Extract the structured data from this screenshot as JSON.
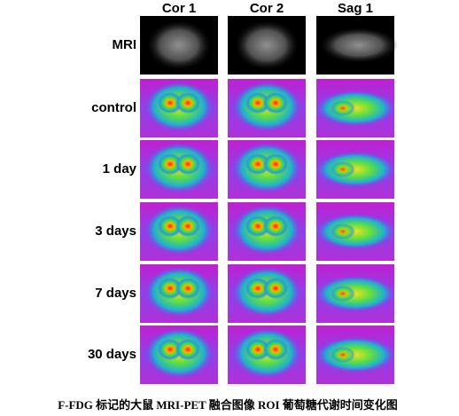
{
  "columns": [
    "Cor 1",
    "Cor 2",
    "Sag 1"
  ],
  "rows": [
    "MRI",
    "control",
    "1 day",
    "3 days",
    "7 days",
    "30 days"
  ],
  "caption": "F-FDG 标记的大鼠 MRI-PET 融合图像 ROI 葡萄糖代谢时间变化图"
}
